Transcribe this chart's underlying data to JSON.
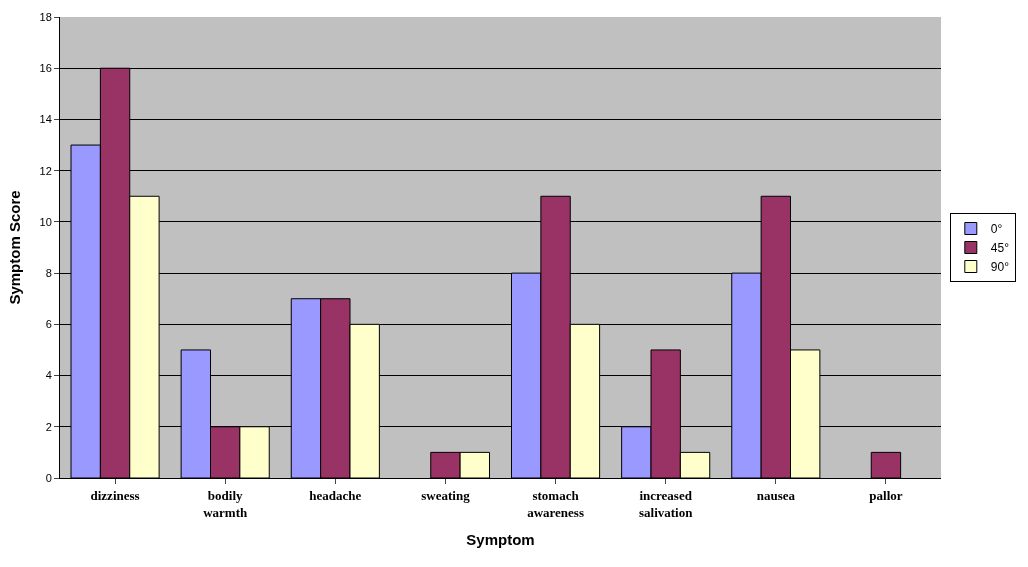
{
  "chart_data": {
    "type": "bar",
    "xlabel": "Symptom",
    "ylabel": "Symptom Score",
    "categories": [
      "dizziness",
      "bodily warmth",
      "headache",
      "sweating",
      "stomach awareness",
      "increased salivation",
      "nausea",
      "pallor"
    ],
    "series": [
      {
        "name": "0°",
        "color": "#9999ff",
        "values": [
          13,
          5,
          7,
          null,
          8,
          2,
          8,
          null
        ]
      },
      {
        "name": "45°",
        "color": "#993366",
        "values": [
          16,
          2,
          7,
          1,
          11,
          5,
          11,
          1
        ]
      },
      {
        "name": "90°",
        "color": "#ffffcc",
        "values": [
          11,
          2,
          6,
          1,
          6,
          1,
          5,
          null
        ]
      }
    ],
    "ylim": [
      0,
      18
    ],
    "yticks": [
      0,
      2,
      4,
      6,
      8,
      10,
      12,
      14,
      16,
      18
    ],
    "grid": "y",
    "legend": "right"
  }
}
